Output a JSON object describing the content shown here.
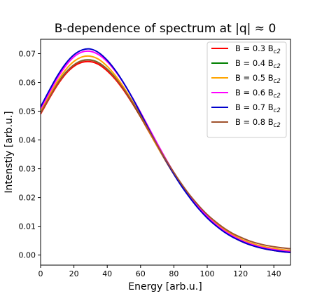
{
  "chart_data": {
    "type": "line",
    "title": "B-dependence of spectrum at |q| ≈ 0",
    "xlabel": "Energy [arb.u.]",
    "ylabel": "Intenstiy [arb.u.]",
    "xlim": [
      0,
      150
    ],
    "ylim": [
      -0.0035,
      0.075
    ],
    "xticks": [
      "0",
      "20",
      "40",
      "60",
      "80",
      "100",
      "120",
      "140"
    ],
    "yticks": [
      "0.00",
      "0.01",
      "0.02",
      "0.03",
      "0.04",
      "0.05",
      "0.06",
      "0.07"
    ],
    "grid": false,
    "legend_position": "top-right",
    "x": [
      0,
      5,
      10,
      15,
      20,
      25,
      30,
      35,
      40,
      45,
      50,
      55,
      60,
      65,
      70,
      75,
      80,
      85,
      90,
      95,
      100,
      105,
      110,
      115,
      120,
      125,
      130,
      135,
      140,
      145,
      150
    ],
    "series": [
      {
        "name": "B = 0.3 B",
        "name_sub": "c2",
        "color": "#ff0000",
        "values": [
          0.049,
          0.0542,
          0.059,
          0.0629,
          0.0656,
          0.067,
          0.0672,
          0.0662,
          0.064,
          0.061,
          0.0572,
          0.0528,
          0.048,
          0.0429,
          0.0378,
          0.0328,
          0.0281,
          0.0237,
          0.0197,
          0.0161,
          0.013,
          0.0104,
          0.0082,
          0.0064,
          0.0049,
          0.0037,
          0.0028,
          0.0021,
          0.0016,
          0.0012,
          0.0009
        ]
      },
      {
        "name": "B = 0.4 B",
        "name_sub": "c2",
        "color": "#008000",
        "values": [
          0.0495,
          0.0547,
          0.0595,
          0.0634,
          0.0661,
          0.0676,
          0.0678,
          0.0668,
          0.0646,
          0.0615,
          0.0576,
          0.0531,
          0.0482,
          0.0431,
          0.0379,
          0.0329,
          0.0282,
          0.0238,
          0.0198,
          0.0163,
          0.0132,
          0.0106,
          0.0084,
          0.0066,
          0.0051,
          0.0039,
          0.003,
          0.0023,
          0.0018,
          0.0014,
          0.0011
        ]
      },
      {
        "name": "B = 0.5 B",
        "name_sub": "c2",
        "color": "#ffa500",
        "values": [
          0.0498,
          0.0552,
          0.0603,
          0.0644,
          0.0673,
          0.0689,
          0.0691,
          0.068,
          0.0656,
          0.0623,
          0.0582,
          0.0535,
          0.0484,
          0.0431,
          0.0378,
          0.0328,
          0.0281,
          0.0238,
          0.0199,
          0.0165,
          0.0135,
          0.011,
          0.0089,
          0.0071,
          0.0056,
          0.0044,
          0.0035,
          0.0028,
          0.0023,
          0.0019,
          0.0016
        ]
      },
      {
        "name": "B = 0.6 B",
        "name_sub": "c2",
        "color": "#ff00ff",
        "values": [
          0.0508,
          0.0562,
          0.0614,
          0.0657,
          0.0689,
          0.0706,
          0.0708,
          0.0696,
          0.0672,
          0.0638,
          0.0596,
          0.0548,
          0.0496,
          0.0442,
          0.0388,
          0.0336,
          0.0287,
          0.0242,
          0.0201,
          0.0165,
          0.0134,
          0.0107,
          0.0085,
          0.0067,
          0.0052,
          0.004,
          0.0031,
          0.0024,
          0.0019,
          0.0015,
          0.0012
        ]
      },
      {
        "name": "B = 0.7 B",
        "name_sub": "c2",
        "color": "#0000cc",
        "values": [
          0.0515,
          0.057,
          0.0622,
          0.0665,
          0.0696,
          0.0713,
          0.0716,
          0.0703,
          0.0677,
          0.0641,
          0.0597,
          0.0547,
          0.0493,
          0.0437,
          0.0382,
          0.033,
          0.0281,
          0.0236,
          0.0196,
          0.016,
          0.0129,
          0.0103,
          0.0081,
          0.0063,
          0.0049,
          0.0037,
          0.0028,
          0.0021,
          0.0016,
          0.0012,
          0.0009
        ]
      },
      {
        "name": "B = 0.8 B",
        "name_sub": "c2",
        "color": "#a0522d",
        "values": [
          0.0493,
          0.0545,
          0.0594,
          0.0633,
          0.0661,
          0.0675,
          0.0677,
          0.0667,
          0.0645,
          0.0614,
          0.0576,
          0.0532,
          0.0484,
          0.0433,
          0.0382,
          0.0333,
          0.0287,
          0.0244,
          0.0205,
          0.0171,
          0.0141,
          0.0116,
          0.0094,
          0.0076,
          0.0062,
          0.005,
          0.0041,
          0.0034,
          0.0029,
          0.0025,
          0.0022
        ]
      }
    ]
  }
}
